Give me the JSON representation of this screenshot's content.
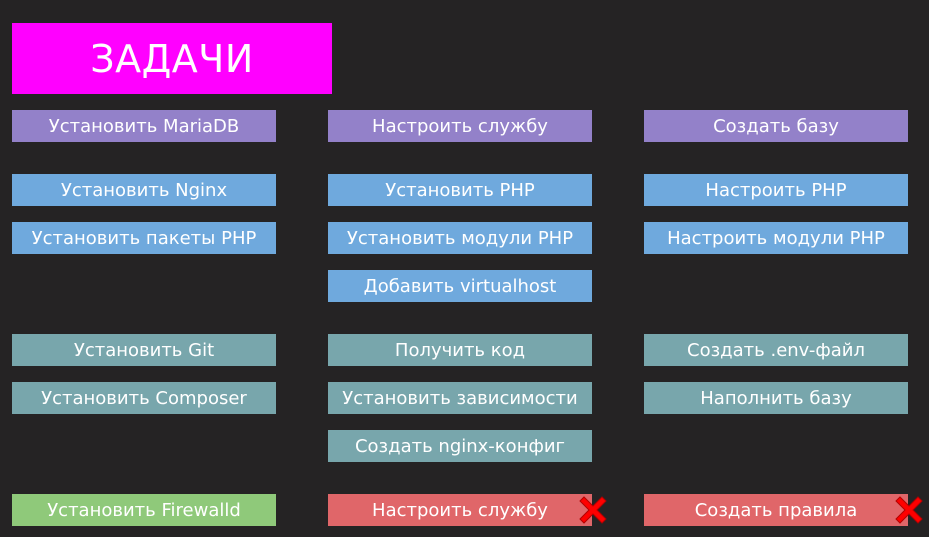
{
  "title": "ЗАДАЧИ",
  "colors": {
    "background": "#252324",
    "title": "#ff00ff",
    "database": "#9381c9",
    "web": "#6fa9dd",
    "app": "#78a6ac",
    "firewall_ok": "#8fc97a",
    "failed": "#e06669",
    "fail_mark": "#ff0000"
  },
  "tasks": {
    "install_mariadb": "Установить MariaDB",
    "configure_service_db": "Настроить службу",
    "create_database": "Создать базу",
    "install_nginx": "Установить Nginx",
    "install_php": "Установить PHP",
    "configure_php": "Настроить PHP",
    "install_php_packages": "Установить пакеты PHP",
    "install_php_modules": "Установить модули PHP",
    "configure_php_modules": "Настроить модули PHP",
    "add_virtualhost": "Добавить virtualhost",
    "install_git": "Установить Git",
    "get_code": "Получить код",
    "create_env_file": "Создать .env-файл",
    "install_composer": "Установить Composer",
    "install_dependencies": "Установить зависимости",
    "seed_database": "Наполнить базу",
    "create_nginx_config": "Создать nginx-конфиг",
    "install_firewalld": "Установить Firewalld",
    "configure_service_firewall": "Настроить службу",
    "create_rules": "Создать правила"
  },
  "status_icons": {
    "failed": "cross-mark-icon"
  }
}
